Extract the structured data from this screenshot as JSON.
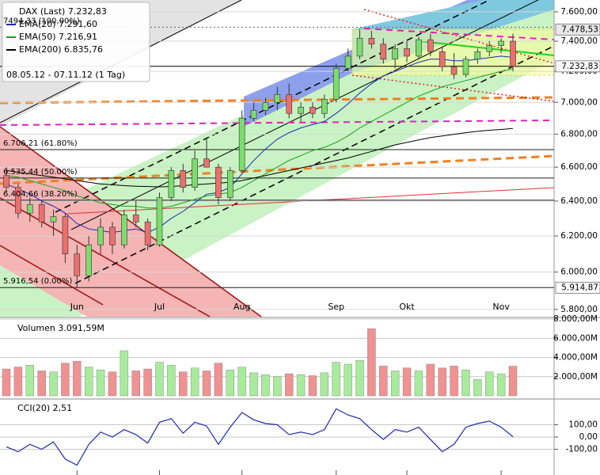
{
  "chart_data": [
    {
      "type": "candlestick",
      "title": "DAX (Last) 7.232,83",
      "subtitle": "08.05.12 - 07.11.12 (1 Tag)",
      "categories": [
        null,
        null,
        null,
        null,
        null,
        null,
        "Jun",
        null,
        null,
        null,
        null,
        null,
        null,
        "Jul",
        null,
        null,
        null,
        null,
        null,
        null,
        "Aug",
        null,
        null,
        null,
        null,
        null,
        null,
        null,
        "Sep",
        null,
        null,
        null,
        null,
        null,
        "Okt",
        null,
        null,
        null,
        null,
        null,
        null,
        null,
        "Nov",
        null
      ],
      "open": [
        6550,
        6480,
        6330,
        6380,
        6280,
        6310,
        6100,
        5980,
        6150,
        6250,
        6150,
        6320,
        6280,
        6150,
        6420,
        6580,
        6480,
        6650,
        6600,
        6420,
        6580,
        6900,
        6950,
        7000,
        7050,
        6930,
        6970,
        6930,
        7020,
        7220,
        7300,
        7420,
        7380,
        7280,
        7350,
        7300,
        7410,
        7330,
        7230,
        7180,
        7280,
        7330,
        7370,
        7400
      ],
      "high": [
        6600,
        6500,
        6420,
        6400,
        6350,
        6330,
        6150,
        6200,
        6300,
        6280,
        6350,
        6400,
        6300,
        6450,
        6600,
        6620,
        6700,
        6780,
        6620,
        6600,
        6950,
        7000,
        7030,
        7100,
        7120,
        7000,
        7000,
        7050,
        7250,
        7350,
        7480,
        7470,
        7420,
        7380,
        7400,
        7430,
        7450,
        7360,
        7320,
        7300,
        7350,
        7400,
        7420,
        7450
      ],
      "low": [
        6450,
        6300,
        6280,
        6250,
        6200,
        6050,
        5916,
        5950,
        6100,
        6100,
        6130,
        6250,
        6120,
        6140,
        6400,
        6450,
        6460,
        6600,
        6380,
        6400,
        6570,
        6880,
        6920,
        6950,
        6900,
        6880,
        6900,
        6900,
        7000,
        7200,
        7280,
        7350,
        7250,
        7220,
        7260,
        7280,
        7300,
        7200,
        7150,
        7160,
        7250,
        7300,
        7320,
        7200
      ],
      "close": [
        6480,
        6330,
        6380,
        6280,
        6310,
        6100,
        5980,
        6150,
        6250,
        6150,
        6320,
        6280,
        6150,
        6420,
        6580,
        6480,
        6650,
        6600,
        6420,
        6580,
        6900,
        6950,
        7000,
        7050,
        6930,
        6970,
        6930,
        7020,
        7220,
        7300,
        7420,
        7380,
        7280,
        7350,
        7300,
        7410,
        7330,
        7230,
        7180,
        7280,
        7330,
        7370,
        7400,
        7232.83
      ],
      "up_color": "#7ddc6e",
      "down_color": "#e9706e",
      "series": [
        {
          "name": "EMA(20) 7.291,60",
          "color": "#1a2ab0",
          "values": [
            6500,
            6470,
            6440,
            6400,
            6370,
            6330,
            6270,
            6240,
            6230,
            6220,
            6230,
            6240,
            6220,
            6250,
            6300,
            6340,
            6390,
            6440,
            6450,
            6480,
            6560,
            6640,
            6710,
            6770,
            6810,
            6840,
            6860,
            6880,
            6930,
            6990,
            7060,
            7120,
            7170,
            7200,
            7230,
            7260,
            7280,
            7280,
            7270,
            7270,
            7280,
            7290,
            7300,
            7291.6
          ]
        },
        {
          "name": "EMA(50) 7.216,91",
          "color": "#1aa01a",
          "values": [
            6550,
            6540,
            6520,
            6500,
            6480,
            6460,
            6430,
            6410,
            6390,
            6380,
            6370,
            6370,
            6360,
            6360,
            6370,
            6390,
            6410,
            6430,
            6440,
            6450,
            6480,
            6520,
            6560,
            6600,
            6640,
            6670,
            6700,
            6720,
            6750,
            6790,
            6840,
            6880,
            6920,
            6960,
            7000,
            7040,
            7070,
            7100,
            7120,
            7140,
            7160,
            7180,
            7200,
            7216.91
          ]
        },
        {
          "name": "EMA(200) 6.835,76",
          "color": "#000000",
          "values": [
            6580,
            6570,
            6560,
            6550,
            6540,
            6530,
            6520,
            6510,
            6500,
            6495,
            6490,
            6487,
            6485,
            6483,
            6485,
            6490,
            6495,
            6500,
            6505,
            6510,
            6520,
            6535,
            6550,
            6565,
            6580,
            6595,
            6610,
            6625,
            6640,
            6655,
            6675,
            6695,
            6715,
            6735,
            6750,
            6765,
            6780,
            6790,
            6800,
            6810,
            6818,
            6825,
            6830,
            6835.76
          ]
        }
      ],
      "fib_levels": [
        {
          "value": 7494.33,
          "label": "7494,33 (100,00%)"
        },
        {
          "value": 6706.21,
          "label": "6.706,21 (61.80%)"
        },
        {
          "value": 6535.44,
          "label": "6.535,44 (50.00%)"
        },
        {
          "value": 6404.66,
          "label": "6.404,66 (38.20%)"
        },
        {
          "value": 5916.54,
          "label": "5.916,54 (0.00%)"
        }
      ],
      "price_markers": [
        {
          "value": 7478.53,
          "label": "7.478,53"
        },
        {
          "value": 7232.83,
          "label": "7.232,83"
        },
        {
          "value": 5914.87,
          "label": "5.914,87"
        }
      ],
      "log_scale": true,
      "ylim": [
        5762,
        7682
      ],
      "yticks": [
        {
          "value": 7600,
          "label": "7.600,00"
        },
        {
          "value": 7400,
          "label": "7.400,00"
        },
        {
          "value": 7200,
          "label": "7.200,00"
        },
        {
          "value": 7000,
          "label": "7.000,00"
        },
        {
          "value": 6800,
          "label": "6.800,00"
        },
        {
          "value": 6600,
          "label": "6.600,00"
        },
        {
          "value": 6400,
          "label": "6.400,00"
        },
        {
          "value": 6200,
          "label": "6.200,00"
        },
        {
          "value": 6000,
          "label": "6.000,00"
        },
        {
          "value": 5800,
          "label": "5.800,00"
        }
      ]
    },
    {
      "type": "bar",
      "title": "Volumen 3.091,59M",
      "values": [
        2800,
        3000,
        3200,
        2600,
        2500,
        3400,
        3600,
        3000,
        2700,
        2500,
        4700,
        2600,
        2800,
        3500,
        3200,
        2500,
        2900,
        2600,
        3400,
        2700,
        3000,
        2400,
        2200,
        2000,
        2300,
        2200,
        2100,
        2400,
        3500,
        3300,
        3700,
        7000,
        3100,
        2600,
        2900,
        2600,
        3300,
        2900,
        3100,
        2700,
        1700,
        2500,
        2300,
        3091.59
      ],
      "up_color": "#a9eb9c",
      "down_color": "#f09292",
      "ylim": [
        0,
        8000
      ],
      "yticks": [
        {
          "value": 8000,
          "label": "8.000,00M"
        },
        {
          "value": 6000,
          "label": "6.000,00M"
        },
        {
          "value": 4000,
          "label": "4.000,00M"
        },
        {
          "value": 2000,
          "label": "2.000,00M"
        }
      ]
    },
    {
      "type": "line",
      "title": "CCI(20) 2,51",
      "color": "#1a2ab0",
      "values": [
        -80,
        -120,
        -60,
        -100,
        -40,
        -180,
        -230,
        -60,
        40,
        0,
        60,
        20,
        -50,
        120,
        150,
        30,
        120,
        90,
        -60,
        80,
        200,
        140,
        110,
        100,
        20,
        40,
        20,
        60,
        230,
        180,
        150,
        60,
        -20,
        60,
        40,
        80,
        -20,
        -120,
        -60,
        80,
        110,
        130,
        80,
        2.51
      ],
      "ylim": [
        -310,
        297
      ],
      "yticks": [
        {
          "value": 100,
          "label": "100,00"
        },
        {
          "value": 0,
          "label": "0,00"
        },
        {
          "value": -100,
          "label": "-100,00"
        }
      ]
    }
  ]
}
